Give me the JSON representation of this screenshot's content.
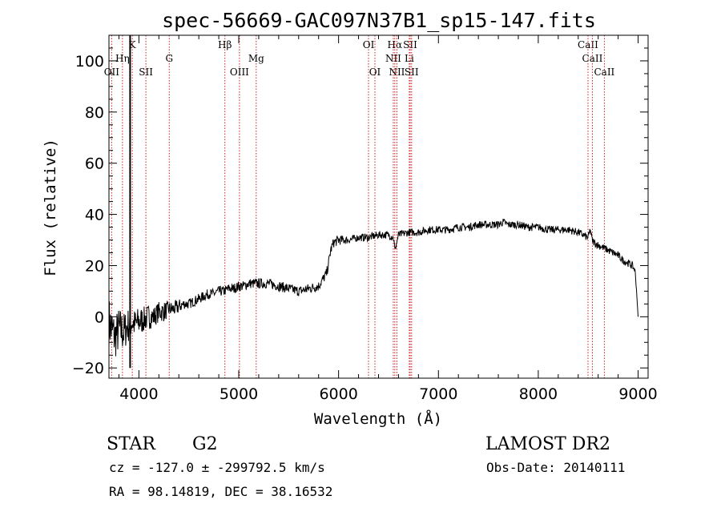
{
  "chart_data": {
    "type": "line",
    "title": "spec-56669-GAC097N37B1_sp15-147.fits",
    "xlabel": "Wavelength (Å)",
    "ylabel": "Flux (relative)",
    "xlim": [
      3700,
      9100
    ],
    "ylim": [
      -24,
      110
    ],
    "xticks": [
      4000,
      5000,
      6000,
      7000,
      8000,
      9000
    ],
    "yticks": [
      -20,
      0,
      20,
      40,
      60,
      80,
      100
    ],
    "grid": false,
    "series": [
      {
        "color": "#000000",
        "x": [
          3700,
          3760,
          3800,
          3850,
          3880,
          3900,
          3930,
          3960,
          4000,
          4050,
          4100,
          4150,
          4200,
          4250,
          4300,
          4350,
          4400,
          4450,
          4500,
          4550,
          4600,
          4650,
          4700,
          4750,
          4800,
          4850,
          4900,
          4950,
          5000,
          5050,
          5100,
          5150,
          5200,
          5300,
          5400,
          5500,
          5600,
          5700,
          5800,
          5850,
          5880,
          5900,
          5920,
          5950,
          6000,
          6100,
          6200,
          6300,
          6400,
          6500,
          6550,
          6565,
          6600,
          6700,
          6800,
          6900,
          7000,
          7100,
          7200,
          7300,
          7400,
          7500,
          7600,
          7650,
          7700,
          7800,
          7900,
          8000,
          8100,
          8200,
          8300,
          8400,
          8450,
          8490,
          8500,
          8520,
          8540,
          8560,
          8600,
          8650,
          8700,
          8750,
          8800,
          8850,
          8900,
          8940,
          8970,
          8985,
          9000
        ],
        "y": [
          -2,
          -8,
          -5,
          -6,
          -4,
          -3,
          -2,
          -3,
          -2,
          -1,
          0,
          0,
          2,
          2,
          3,
          3,
          4,
          5,
          5,
          6,
          7,
          8,
          9,
          9,
          10,
          10,
          11,
          11,
          12,
          12,
          13,
          13,
          13,
          13,
          12,
          11,
          10,
          11,
          12,
          15,
          17,
          21,
          26,
          29,
          30,
          30,
          31,
          31,
          32,
          32,
          31,
          26,
          32,
          33,
          33,
          34,
          34,
          34,
          35,
          35,
          36,
          36,
          36,
          37,
          36,
          36,
          35,
          35,
          34,
          34,
          34,
          33,
          32,
          31,
          31,
          34,
          30,
          29,
          28,
          27,
          26,
          25,
          24,
          22,
          21,
          20,
          18,
          10,
          0
        ],
        "noise": [
          10,
          9,
          9,
          8,
          7,
          7,
          6,
          6,
          6,
          5,
          5,
          4,
          4,
          4,
          3,
          3,
          3,
          2,
          2,
          2,
          2,
          2,
          2,
          2,
          2,
          2,
          2,
          2,
          2,
          2,
          2,
          2,
          2,
          2,
          2,
          2,
          2,
          2,
          2,
          2,
          2,
          2,
          2,
          2,
          2,
          1.5,
          1.5,
          1.5,
          1.5,
          1.5,
          1.5,
          1,
          1.5,
          1.5,
          1.5,
          1.5,
          1.5,
          1.5,
          1.5,
          1.5,
          1.5,
          1.5,
          1.5,
          1.5,
          1.5,
          1.5,
          1.5,
          1.5,
          1.5,
          1.5,
          1.5,
          1.5,
          1.5,
          1.5,
          1.5,
          1.5,
          1.5,
          1.5,
          1.5,
          1.5,
          1.5,
          1.5,
          1.5,
          1.5,
          1.5,
          1.5,
          1,
          0.5,
          0
        ]
      }
    ],
    "spikes": [
      {
        "x": 3912,
        "y0": -20,
        "y1": 110
      }
    ],
    "annotations": [
      {
        "label": "OII",
        "x": 3727,
        "row": 2
      },
      {
        "label": "Hη",
        "x": 3835,
        "row": 1
      },
      {
        "label": "K",
        "x": 3934,
        "row": 0
      },
      {
        "label": "SII",
        "x": 4070,
        "row": 2
      },
      {
        "label": "G",
        "x": 4304,
        "row": 1
      },
      {
        "label": "Hβ",
        "x": 4861,
        "row": 0
      },
      {
        "label": "OIII",
        "x": 5007,
        "row": 2
      },
      {
        "label": "Mg",
        "x": 5175,
        "row": 1
      },
      {
        "label": "OI",
        "x": 6300,
        "row": 0
      },
      {
        "label": "OI",
        "x": 6364,
        "row": 2
      },
      {
        "label": "Hα",
        "x": 6563,
        "row": 0
      },
      {
        "label": "NII",
        "x": 6548,
        "row": 1
      },
      {
        "label": "NII",
        "x": 6584,
        "row": 2
      },
      {
        "label": "SII",
        "x": 6717,
        "row": 0
      },
      {
        "label": "Li",
        "x": 6708,
        "row": 1
      },
      {
        "label": "SII",
        "x": 6731,
        "row": 2
      },
      {
        "label": "CaII",
        "x": 8498,
        "row": 0
      },
      {
        "label": "CaII",
        "x": 8542,
        "row": 1
      },
      {
        "label": "CaII",
        "x": 8662,
        "row": 2
      }
    ],
    "line_color": "#d02020"
  },
  "footer": {
    "object_class": "STAR",
    "subclass": "G2",
    "survey": "LAMOST DR2",
    "cz": "cz = -127.0 ± -299792.5 km/s",
    "obs_date": "Obs-Date: 20140111",
    "coords": "RA =  98.14819, DEC =  38.16532"
  }
}
